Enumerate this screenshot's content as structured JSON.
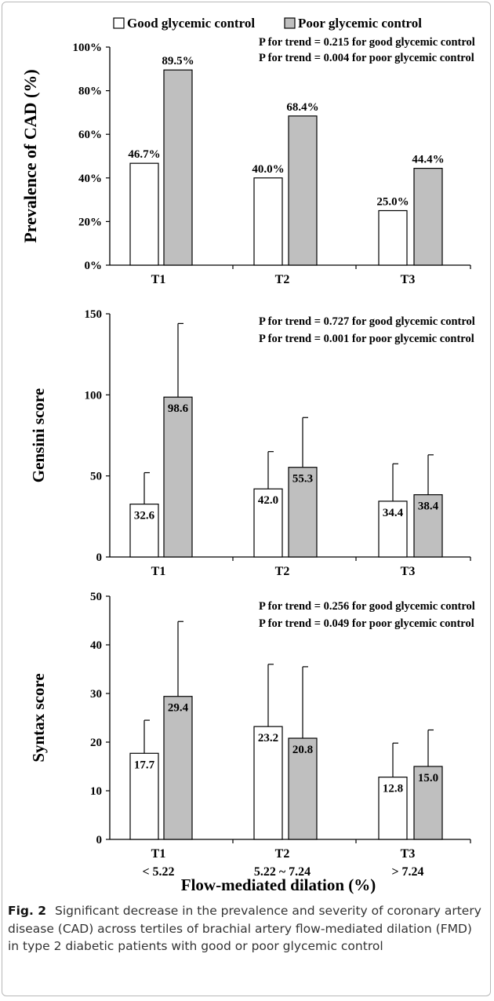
{
  "caption": {
    "label": "Fig. 2",
    "text": "Significant decrease in the prevalence and severity of coronary artery disease (CAD) across tertiles of brachial artery flow-mediated dilation (FMD) in type 2 diabetic patients with good or poor glycemic control"
  },
  "colors": {
    "good": "#ffffff",
    "poor": "#bfbfbf",
    "outline": "#000000"
  },
  "legend": [
    {
      "label": "Good glycemic control",
      "color": "#ffffff"
    },
    {
      "label": "Poor glycemic control",
      "color": "#bfbfbf"
    }
  ],
  "shared_xlabel": "Flow-mediated dilation (%)",
  "chart_data": [
    {
      "type": "bar",
      "ylabel": "Prevalence of CAD (%)",
      "ylim": [
        0,
        100
      ],
      "yticks": [
        "0%",
        "20%",
        "40%",
        "60%",
        "80%",
        "100%"
      ],
      "categories": [
        "T1",
        "T2",
        "T3"
      ],
      "series": [
        {
          "name": "Good glycemic control",
          "values": [
            46.7,
            40.0,
            25.0
          ],
          "labels": [
            "46.7%",
            "40.0%",
            "25.0%"
          ]
        },
        {
          "name": "Poor glycemic control",
          "values": [
            89.5,
            68.4,
            44.4
          ],
          "labels": [
            "89.5%",
            "68.4%",
            "44.4%"
          ]
        }
      ],
      "annotations": [
        "P for trend = 0.215 for good glycemic control",
        "P for trend = 0.004 for poor glycemic control"
      ]
    },
    {
      "type": "bar",
      "ylabel": "Gensini score",
      "ylim": [
        0,
        150
      ],
      "yticks": [
        "0",
        "50",
        "100",
        "150"
      ],
      "categories": [
        "T1",
        "T2",
        "T3"
      ],
      "series": [
        {
          "name": "Good glycemic control",
          "values": [
            32.6,
            42.0,
            34.4
          ],
          "labels": [
            "32.6",
            "42.0",
            "34.4"
          ],
          "error_upper": [
            52,
            65,
            57.5
          ]
        },
        {
          "name": "Poor glycemic control",
          "values": [
            98.6,
            55.3,
            38.4
          ],
          "labels": [
            "98.6",
            "55.3",
            "38.4"
          ],
          "error_upper": [
            144,
            86,
            63
          ]
        }
      ],
      "annotations": [
        "P for trend = 0.727 for good glycemic control",
        "P for trend = 0.001 for poor glycemic control"
      ]
    },
    {
      "type": "bar",
      "ylabel": "Syntax score",
      "ylim": [
        0,
        50
      ],
      "yticks": [
        "0",
        "10",
        "20",
        "30",
        "40",
        "50"
      ],
      "categories": [
        "T1",
        "T2",
        "T3"
      ],
      "category_sublabels": [
        "< 5.22",
        "5.22 ~ 7.24",
        "> 7.24"
      ],
      "series": [
        {
          "name": "Good glycemic control",
          "values": [
            17.7,
            23.2,
            12.8
          ],
          "labels": [
            "17.7",
            "23.2",
            "12.8"
          ],
          "error_upper": [
            24.5,
            36,
            19.8
          ]
        },
        {
          "name": "Poor glycemic control",
          "values": [
            29.4,
            20.8,
            15.0
          ],
          "labels": [
            "29.4",
            "20.8",
            "15.0"
          ],
          "error_upper": [
            44.8,
            35.5,
            22.5
          ]
        }
      ],
      "annotations": [
        "P for trend = 0.256 for good glycemic control",
        "P for trend = 0.049 for poor glycemic control"
      ]
    }
  ]
}
